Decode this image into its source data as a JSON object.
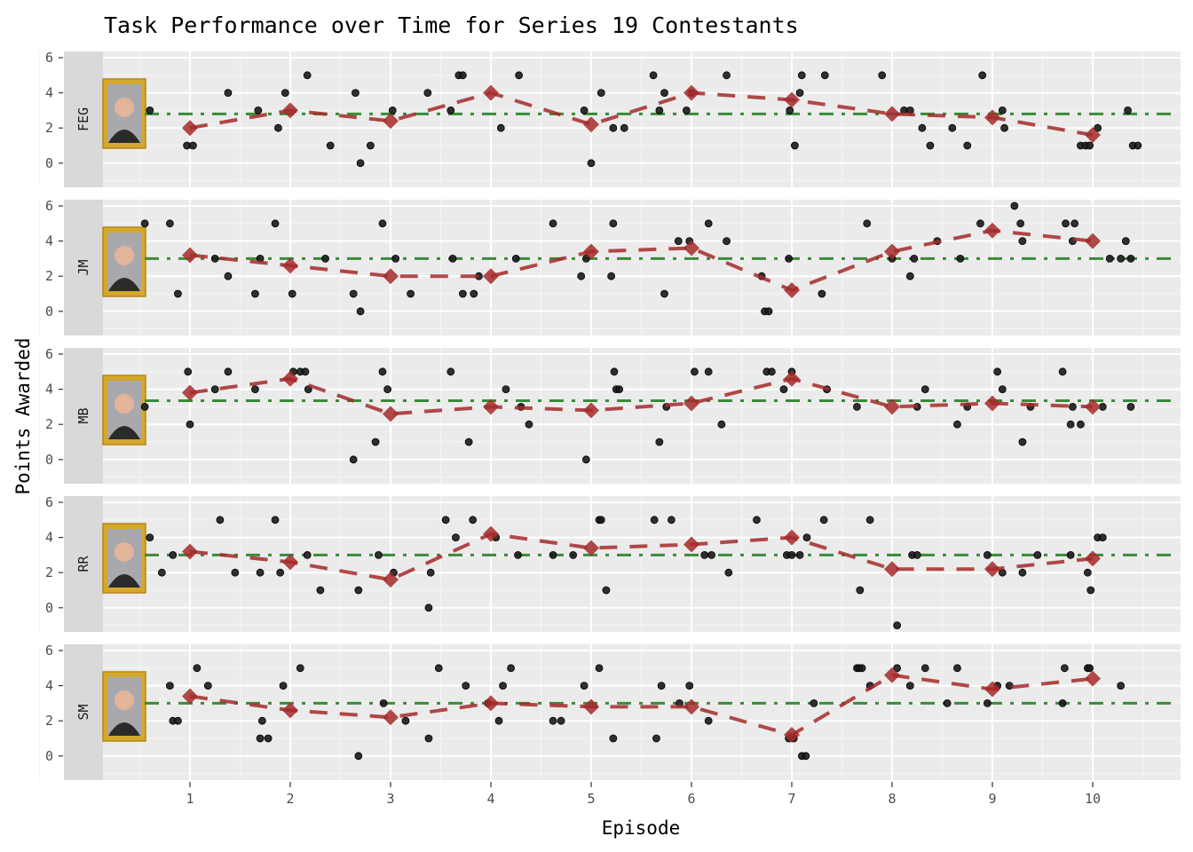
{
  "chart_data": {
    "type": "scatter",
    "title": "Task Performance over Time for Series 19 Contestants",
    "xlabel": "Episode",
    "ylabel": "Points Awarded",
    "x_ticks": [
      1,
      2,
      3,
      4,
      5,
      6,
      7,
      8,
      9,
      10
    ],
    "y_ticks": [
      0,
      2,
      4,
      6
    ],
    "xlim": [
      -0.25,
      10.87
    ],
    "ylim": [
      -1.3,
      6.4
    ],
    "grid": true,
    "facet": "rows by contestant",
    "colors": {
      "points": "#1a1a1a",
      "episode_mean": "#a52a2a",
      "overall_mean": "#3a8a3a",
      "panel_bg": "#ebebeb",
      "strip_bg": "#d9d9d9",
      "frame_gold": "#d4a82a"
    },
    "legend": "none",
    "panels": [
      {
        "label": "FEG",
        "overall_mean": 2.8,
        "episode_means": [
          2.0,
          3.0,
          2.4,
          4.0,
          2.2,
          4.0,
          3.6,
          2.8,
          2.6,
          1.6
        ],
        "points": [
          [
            0.6,
            3
          ],
          [
            0.97,
            1
          ],
          [
            1.03,
            1
          ],
          [
            1.38,
            4
          ],
          [
            1.68,
            3
          ],
          [
            1.88,
            2
          ],
          [
            1.95,
            4
          ],
          [
            2.17,
            5
          ],
          [
            2.4,
            1
          ],
          [
            2.65,
            4
          ],
          [
            2.7,
            0
          ],
          [
            2.8,
            1
          ],
          [
            3.02,
            3
          ],
          [
            3.37,
            4
          ],
          [
            3.6,
            3
          ],
          [
            3.68,
            5
          ],
          [
            3.72,
            5
          ],
          [
            4.1,
            2
          ],
          [
            4.28,
            5
          ],
          [
            4.93,
            3
          ],
          [
            5.0,
            0
          ],
          [
            5.1,
            4
          ],
          [
            5.22,
            2
          ],
          [
            5.33,
            2
          ],
          [
            5.62,
            5
          ],
          [
            5.68,
            3
          ],
          [
            5.73,
            4
          ],
          [
            5.95,
            3
          ],
          [
            6.0,
            4
          ],
          [
            6.35,
            5
          ],
          [
            6.98,
            3
          ],
          [
            7.03,
            1
          ],
          [
            7.08,
            4
          ],
          [
            7.1,
            5
          ],
          [
            7.33,
            5
          ],
          [
            7.9,
            5
          ],
          [
            8.12,
            3
          ],
          [
            8.18,
            3
          ],
          [
            8.3,
            2
          ],
          [
            8.38,
            1
          ],
          [
            8.6,
            2
          ],
          [
            8.75,
            1
          ],
          [
            8.9,
            5
          ],
          [
            9.1,
            3
          ],
          [
            9.12,
            2
          ],
          [
            9.88,
            1
          ],
          [
            9.93,
            1
          ],
          [
            9.97,
            1
          ],
          [
            10.05,
            2
          ],
          [
            10.35,
            3
          ],
          [
            10.4,
            1
          ],
          [
            10.45,
            1
          ]
        ]
      },
      {
        "label": "JM",
        "overall_mean": 3.0,
        "episode_means": [
          3.2,
          2.6,
          2.0,
          2.0,
          3.4,
          3.6,
          1.2,
          3.4,
          4.6,
          4.0
        ],
        "points": [
          [
            0.55,
            5
          ],
          [
            0.8,
            5
          ],
          [
            0.88,
            1
          ],
          [
            1.25,
            3
          ],
          [
            1.38,
            2
          ],
          [
            1.65,
            1
          ],
          [
            1.7,
            3
          ],
          [
            1.85,
            5
          ],
          [
            2.02,
            1
          ],
          [
            2.35,
            3
          ],
          [
            2.63,
            1
          ],
          [
            2.7,
            0
          ],
          [
            2.92,
            5
          ],
          [
            3.05,
            3
          ],
          [
            3.2,
            1
          ],
          [
            3.62,
            3
          ],
          [
            3.72,
            1
          ],
          [
            3.83,
            1
          ],
          [
            3.88,
            2
          ],
          [
            4.25,
            3
          ],
          [
            4.62,
            5
          ],
          [
            4.9,
            2
          ],
          [
            4.95,
            3
          ],
          [
            5.2,
            2
          ],
          [
            5.22,
            5
          ],
          [
            5.73,
            1
          ],
          [
            5.87,
            4
          ],
          [
            5.98,
            4
          ],
          [
            6.17,
            5
          ],
          [
            6.35,
            4
          ],
          [
            6.7,
            2
          ],
          [
            6.73,
            0
          ],
          [
            6.77,
            0
          ],
          [
            6.97,
            3
          ],
          [
            7.3,
            1
          ],
          [
            7.75,
            5
          ],
          [
            8.0,
            3
          ],
          [
            8.18,
            2
          ],
          [
            8.22,
            3
          ],
          [
            8.45,
            4
          ],
          [
            8.68,
            3
          ],
          [
            8.88,
            5
          ],
          [
            9.22,
            6
          ],
          [
            9.28,
            5
          ],
          [
            9.3,
            4
          ],
          [
            9.73,
            5
          ],
          [
            9.82,
            5
          ],
          [
            9.8,
            4
          ],
          [
            10.17,
            3
          ],
          [
            10.28,
            3
          ],
          [
            10.33,
            4
          ],
          [
            10.38,
            3
          ]
        ]
      },
      {
        "label": "MB",
        "overall_mean": 3.35,
        "episode_means": [
          3.8,
          4.6,
          2.6,
          3.0,
          2.8,
          3.2,
          4.6,
          3.0,
          3.2,
          3.0
        ],
        "points": [
          [
            0.55,
            3
          ],
          [
            0.98,
            5
          ],
          [
            1.0,
            2
          ],
          [
            1.25,
            4
          ],
          [
            1.38,
            5
          ],
          [
            1.65,
            4
          ],
          [
            2.03,
            5
          ],
          [
            2.1,
            5
          ],
          [
            2.15,
            5
          ],
          [
            2.18,
            4
          ],
          [
            2.63,
            0
          ],
          [
            2.85,
            1
          ],
          [
            2.92,
            5
          ],
          [
            2.97,
            4
          ],
          [
            3.6,
            5
          ],
          [
            3.78,
            1
          ],
          [
            4.15,
            4
          ],
          [
            4.3,
            3
          ],
          [
            4.38,
            2
          ],
          [
            4.95,
            0
          ],
          [
            5.23,
            5
          ],
          [
            5.25,
            4
          ],
          [
            5.28,
            4
          ],
          [
            5.68,
            1
          ],
          [
            5.75,
            3
          ],
          [
            6.03,
            5
          ],
          [
            6.17,
            5
          ],
          [
            6.3,
            2
          ],
          [
            6.75,
            5
          ],
          [
            6.8,
            5
          ],
          [
            6.92,
            4
          ],
          [
            7.0,
            5
          ],
          [
            7.35,
            4
          ],
          [
            7.65,
            3
          ],
          [
            8.25,
            3
          ],
          [
            8.33,
            4
          ],
          [
            8.65,
            2
          ],
          [
            8.75,
            3
          ],
          [
            9.05,
            5
          ],
          [
            9.1,
            4
          ],
          [
            9.3,
            1
          ],
          [
            9.38,
            3
          ],
          [
            9.7,
            5
          ],
          [
            9.78,
            2
          ],
          [
            9.8,
            3
          ],
          [
            9.88,
            2
          ],
          [
            10.1,
            3
          ],
          [
            10.38,
            3
          ]
        ]
      },
      {
        "label": "RR",
        "overall_mean": 3.0,
        "episode_means": [
          3.2,
          2.6,
          1.6,
          4.2,
          3.4,
          3.6,
          4.0,
          2.2,
          2.2,
          2.8
        ],
        "points": [
          [
            0.6,
            4
          ],
          [
            0.72,
            2
          ],
          [
            0.83,
            3
          ],
          [
            1.3,
            5
          ],
          [
            1.45,
            2
          ],
          [
            1.7,
            2
          ],
          [
            1.85,
            5
          ],
          [
            1.9,
            2
          ],
          [
            2.17,
            3
          ],
          [
            2.3,
            1
          ],
          [
            2.68,
            1
          ],
          [
            2.88,
            3
          ],
          [
            3.03,
            2
          ],
          [
            3.38,
            0
          ],
          [
            3.4,
            2
          ],
          [
            3.55,
            5
          ],
          [
            3.65,
            4
          ],
          [
            3.82,
            5
          ],
          [
            4.05,
            4
          ],
          [
            4.27,
            3
          ],
          [
            4.62,
            3
          ],
          [
            4.82,
            3
          ],
          [
            5.08,
            5
          ],
          [
            5.1,
            5
          ],
          [
            5.15,
            1
          ],
          [
            5.63,
            5
          ],
          [
            5.8,
            5
          ],
          [
            6.13,
            3
          ],
          [
            6.2,
            3
          ],
          [
            6.37,
            2
          ],
          [
            6.65,
            5
          ],
          [
            6.95,
            3
          ],
          [
            7.0,
            3
          ],
          [
            7.08,
            3
          ],
          [
            7.15,
            4
          ],
          [
            7.32,
            5
          ],
          [
            7.68,
            1
          ],
          [
            7.78,
            5
          ],
          [
            8.05,
            -1
          ],
          [
            8.2,
            3
          ],
          [
            8.25,
            3
          ],
          [
            8.95,
            3
          ],
          [
            9.1,
            2
          ],
          [
            9.3,
            2
          ],
          [
            9.45,
            3
          ],
          [
            9.78,
            3
          ],
          [
            9.95,
            2
          ],
          [
            9.98,
            1
          ],
          [
            10.05,
            4
          ],
          [
            10.1,
            4
          ]
        ]
      },
      {
        "label": "SM",
        "overall_mean": 3.0,
        "episode_means": [
          3.4,
          2.6,
          2.2,
          3.0,
          2.8,
          2.8,
          1.2,
          4.6,
          3.8,
          4.4
        ],
        "points": [
          [
            0.8,
            4
          ],
          [
            0.83,
            2
          ],
          [
            0.88,
            2
          ],
          [
            1.07,
            5
          ],
          [
            1.18,
            4
          ],
          [
            1.7,
            1
          ],
          [
            1.72,
            2
          ],
          [
            1.78,
            1
          ],
          [
            1.93,
            4
          ],
          [
            2.1,
            5
          ],
          [
            2.68,
            0
          ],
          [
            2.93,
            3
          ],
          [
            3.15,
            2
          ],
          [
            3.38,
            1
          ],
          [
            3.48,
            5
          ],
          [
            3.75,
            4
          ],
          [
            3.97,
            3
          ],
          [
            4.08,
            2
          ],
          [
            4.12,
            4
          ],
          [
            4.2,
            5
          ],
          [
            4.62,
            2
          ],
          [
            4.7,
            2
          ],
          [
            4.93,
            4
          ],
          [
            5.08,
            5
          ],
          [
            5.22,
            1
          ],
          [
            5.65,
            1
          ],
          [
            5.7,
            4
          ],
          [
            5.88,
            3
          ],
          [
            5.98,
            4
          ],
          [
            6.17,
            2
          ],
          [
            6.97,
            1
          ],
          [
            7.02,
            1
          ],
          [
            7.1,
            0
          ],
          [
            7.14,
            0
          ],
          [
            7.22,
            3
          ],
          [
            7.65,
            5
          ],
          [
            7.67,
            5
          ],
          [
            7.7,
            5
          ],
          [
            7.78,
            4
          ],
          [
            8.05,
            5
          ],
          [
            8.18,
            4
          ],
          [
            8.33,
            5
          ],
          [
            8.55,
            3
          ],
          [
            8.65,
            5
          ],
          [
            8.95,
            3
          ],
          [
            9.05,
            4
          ],
          [
            9.17,
            4
          ],
          [
            9.7,
            3
          ],
          [
            9.72,
            5
          ],
          [
            9.95,
            5
          ],
          [
            9.97,
            5
          ],
          [
            10.28,
            4
          ]
        ]
      }
    ]
  }
}
